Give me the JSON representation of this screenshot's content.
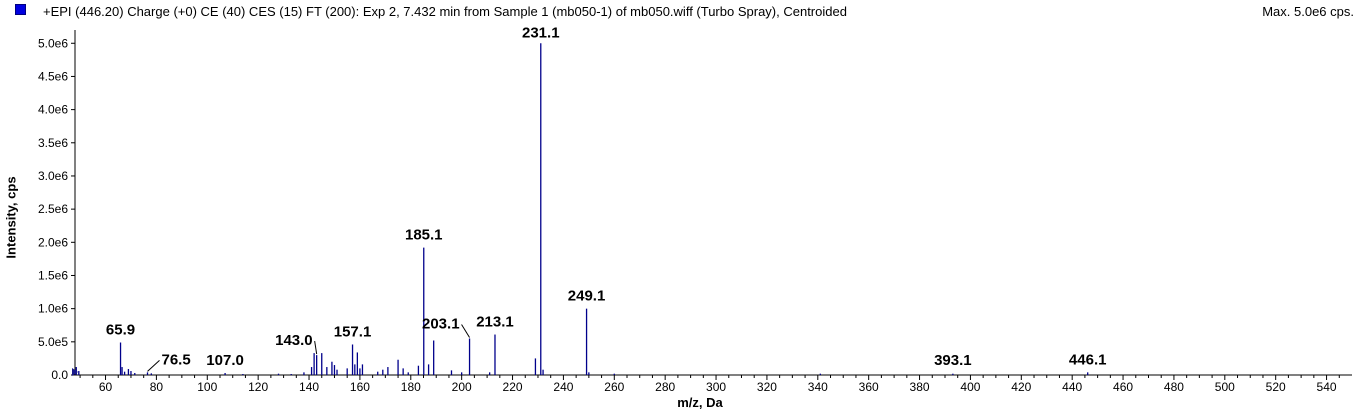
{
  "header": {
    "title": "+EPI (446.20) Charge (+0) CE (40) CES (15) FT (200): Exp 2, 7.432 min from Sample 1 (mb050-1) of mb050.wiff (Turbo Spray), Centroided",
    "max_label": "Max. 5.0e6 cps."
  },
  "colors": {
    "peak": "#00008b",
    "swatch": "#0000e0"
  },
  "chart_data": {
    "type": "bar",
    "xlabel": "m/z, Da",
    "ylabel": "Intensity, cps",
    "xlim": [
      48,
      550
    ],
    "ylim": [
      0,
      5200000
    ],
    "x_ticks": [
      60,
      80,
      100,
      120,
      140,
      160,
      180,
      200,
      220,
      240,
      260,
      280,
      300,
      320,
      340,
      360,
      380,
      400,
      420,
      440,
      460,
      480,
      500,
      520,
      540
    ],
    "y_ticks": [
      {
        "value": 0,
        "label": "0.0"
      },
      {
        "value": 500000,
        "label": "5.0e5"
      },
      {
        "value": 1000000,
        "label": "1.0e6"
      },
      {
        "value": 1500000,
        "label": "1.5e6"
      },
      {
        "value": 2000000,
        "label": "2.0e6"
      },
      {
        "value": 2500000,
        "label": "2.5e6"
      },
      {
        "value": 3000000,
        "label": "3.0e6"
      },
      {
        "value": 3500000,
        "label": "3.5e6"
      },
      {
        "value": 4000000,
        "label": "4.0e6"
      },
      {
        "value": 4500000,
        "label": "4.5e6"
      },
      {
        "value": 5000000,
        "label": "5.0e6"
      }
    ],
    "peaks": [
      {
        "mz": 48.5,
        "intensity": 120000
      },
      {
        "mz": 49.5,
        "intensity": 60000
      },
      {
        "mz": 65.9,
        "intensity": 490000
      },
      {
        "mz": 66.5,
        "intensity": 120000
      },
      {
        "mz": 67.5,
        "intensity": 50000
      },
      {
        "mz": 69.0,
        "intensity": 90000
      },
      {
        "mz": 70.0,
        "intensity": 60000
      },
      {
        "mz": 71.5,
        "intensity": 30000
      },
      {
        "mz": 76.5,
        "intensity": 40000
      },
      {
        "mz": 78.0,
        "intensity": 25000
      },
      {
        "mz": 107.0,
        "intensity": 30000
      },
      {
        "mz": 114.0,
        "intensity": 15000
      },
      {
        "mz": 128.0,
        "intensity": 20000
      },
      {
        "mz": 133.0,
        "intensity": 15000
      },
      {
        "mz": 138.0,
        "intensity": 40000
      },
      {
        "mz": 141.0,
        "intensity": 120000
      },
      {
        "mz": 142.0,
        "intensity": 330000
      },
      {
        "mz": 143.0,
        "intensity": 300000
      },
      {
        "mz": 145.0,
        "intensity": 330000
      },
      {
        "mz": 147.0,
        "intensity": 120000
      },
      {
        "mz": 149.0,
        "intensity": 200000
      },
      {
        "mz": 150.0,
        "intensity": 150000
      },
      {
        "mz": 151.0,
        "intensity": 80000
      },
      {
        "mz": 155.0,
        "intensity": 100000
      },
      {
        "mz": 157.1,
        "intensity": 460000
      },
      {
        "mz": 158.0,
        "intensity": 160000
      },
      {
        "mz": 159.0,
        "intensity": 340000
      },
      {
        "mz": 160.0,
        "intensity": 100000
      },
      {
        "mz": 161.0,
        "intensity": 160000
      },
      {
        "mz": 167.0,
        "intensity": 50000
      },
      {
        "mz": 169.0,
        "intensity": 80000
      },
      {
        "mz": 171.0,
        "intensity": 120000
      },
      {
        "mz": 175.0,
        "intensity": 230000
      },
      {
        "mz": 177.0,
        "intensity": 100000
      },
      {
        "mz": 179.0,
        "intensity": 40000
      },
      {
        "mz": 183.0,
        "intensity": 140000
      },
      {
        "mz": 185.1,
        "intensity": 1920000
      },
      {
        "mz": 187.0,
        "intensity": 160000
      },
      {
        "mz": 189.0,
        "intensity": 520000
      },
      {
        "mz": 196.0,
        "intensity": 70000
      },
      {
        "mz": 200.0,
        "intensity": 40000
      },
      {
        "mz": 203.1,
        "intensity": 550000
      },
      {
        "mz": 211.0,
        "intensity": 40000
      },
      {
        "mz": 213.1,
        "intensity": 610000
      },
      {
        "mz": 229.0,
        "intensity": 250000
      },
      {
        "mz": 231.1,
        "intensity": 5000000
      },
      {
        "mz": 232.0,
        "intensity": 80000
      },
      {
        "mz": 249.1,
        "intensity": 1000000
      },
      {
        "mz": 250.0,
        "intensity": 40000
      },
      {
        "mz": 260.0,
        "intensity": 20000
      },
      {
        "mz": 341.0,
        "intensity": 20000
      },
      {
        "mz": 393.1,
        "intensity": 20000
      },
      {
        "mz": 446.1,
        "intensity": 40000
      }
    ],
    "annotations": [
      {
        "label": "65.9",
        "mz": 65.9
      },
      {
        "label": "76.5",
        "mz": 76.5
      },
      {
        "label": "107.0",
        "mz": 107.0
      },
      {
        "label": "143.0",
        "mz": 143.0
      },
      {
        "label": "157.1",
        "mz": 157.1
      },
      {
        "label": "185.1",
        "mz": 185.1
      },
      {
        "label": "203.1",
        "mz": 203.1
      },
      {
        "label": "213.1",
        "mz": 213.1
      },
      {
        "label": "231.1",
        "mz": 231.1
      },
      {
        "label": "249.1",
        "mz": 249.1
      },
      {
        "label": "393.1",
        "mz": 393.1
      },
      {
        "label": "446.1",
        "mz": 446.1
      }
    ]
  }
}
